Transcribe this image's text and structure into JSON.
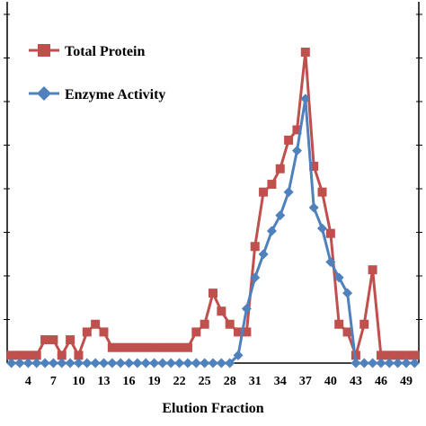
{
  "chart_data": {
    "type": "line",
    "xlabel": "Elution Fraction",
    "ylabel": "",
    "tick_labels": [
      "4",
      "7",
      "10",
      "13",
      "16",
      "19",
      "22",
      "25",
      "28",
      "31",
      "34",
      "37",
      "40",
      "43",
      "46",
      "49"
    ],
    "x": [
      2,
      3,
      4,
      5,
      6,
      7,
      8,
      9,
      10,
      11,
      12,
      13,
      14,
      15,
      16,
      17,
      18,
      19,
      20,
      21,
      22,
      23,
      24,
      25,
      26,
      27,
      28,
      29,
      30,
      31,
      32,
      33,
      34,
      35,
      36,
      37,
      38,
      39,
      40,
      41,
      42,
      43,
      44,
      45,
      46,
      47,
      48,
      49,
      50
    ],
    "ylim": [
      0,
      1
    ],
    "grid": false,
    "legend": "top-left",
    "series": [
      {
        "name": "Total Protein",
        "color": "#c0504d",
        "marker": "square",
        "values": [
          0.025,
          0.025,
          0.025,
          0.025,
          0.075,
          0.075,
          0.025,
          0.075,
          0.025,
          0.1,
          0.125,
          0.1,
          0.05,
          0.05,
          0.05,
          0.05,
          0.05,
          0.05,
          0.05,
          0.05,
          0.05,
          0.05,
          0.1,
          0.125,
          0.225,
          0.167,
          0.125,
          0.1,
          0.1,
          0.375,
          0.55,
          0.575,
          0.625,
          0.717,
          0.75,
          1.0,
          0.633,
          0.55,
          0.417,
          0.125,
          0.1,
          0.025,
          0.125,
          0.3,
          0.025,
          0.025,
          0.025,
          0.025,
          0.025
        ]
      },
      {
        "name": "Enzyme Activity",
        "color": "#4f81bd",
        "marker": "diamond",
        "values": [
          0,
          0,
          0,
          0,
          0,
          0,
          0,
          0,
          0,
          0,
          0,
          0,
          0,
          0,
          0,
          0,
          0,
          0,
          0,
          0,
          0,
          0,
          0,
          0,
          0,
          0,
          0,
          0.025,
          0.175,
          0.275,
          0.35,
          0.425,
          0.475,
          0.55,
          0.683,
          0.85,
          0.5,
          0.433,
          0.325,
          0.275,
          0.225,
          0,
          0,
          0,
          0,
          0,
          0,
          0,
          0
        ]
      }
    ]
  }
}
